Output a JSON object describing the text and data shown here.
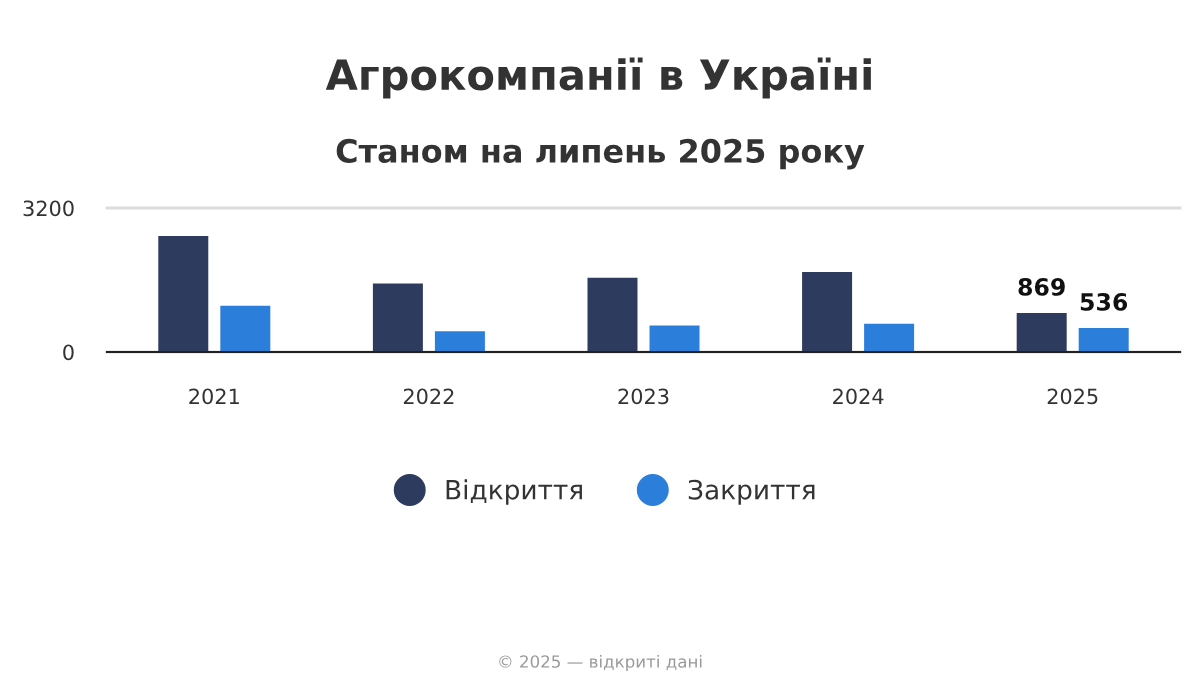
{
  "chart_data": {
    "type": "bar",
    "title": "Агрокомпанії в Україні",
    "subtitle": "Станом на липень 2025 року",
    "categories": [
      "2021",
      "2022",
      "2023",
      "2024",
      "2025"
    ],
    "series": [
      {
        "name": "Відкриття",
        "color": "#2d3c5e",
        "values": [
          2580,
          1520,
          1650,
          1780,
          869
        ],
        "value_labels": [
          null,
          null,
          null,
          null,
          "869"
        ]
      },
      {
        "name": "Закриття",
        "color": "#2b7fdb",
        "values": [
          1030,
          460,
          590,
          630,
          536
        ],
        "value_labels": [
          null,
          null,
          null,
          null,
          "536"
        ]
      }
    ],
    "ylim": [
      0,
      3200
    ],
    "yticks": [
      0,
      3200
    ],
    "grid": "y",
    "legend": "bottom",
    "annotations": [
      "© 2025 — відкриті дані"
    ]
  }
}
